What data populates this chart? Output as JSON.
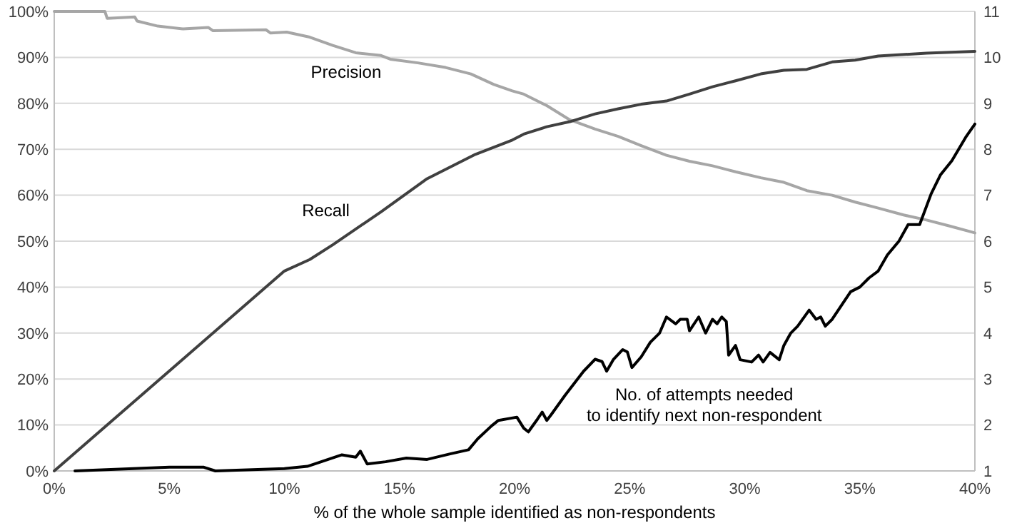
{
  "chart_data": {
    "type": "line",
    "xlabel": "% of the whole sample identified as non-respondents",
    "xlim": [
      0,
      40
    ],
    "xticks": [
      {
        "value": 0,
        "label": "0%"
      },
      {
        "value": 5,
        "label": "5%"
      },
      {
        "value": 10,
        "label": "10%"
      },
      {
        "value": 15,
        "label": "15%"
      },
      {
        "value": 20,
        "label": "20%"
      },
      {
        "value": 25,
        "label": "25%"
      },
      {
        "value": 30,
        "label": "30%"
      },
      {
        "value": 35,
        "label": "35%"
      },
      {
        "value": 40,
        "label": "40%"
      }
    ],
    "ylim": [
      0,
      100
    ],
    "yticks": [
      {
        "value": 0,
        "label": "0%"
      },
      {
        "value": 10,
        "label": "10%"
      },
      {
        "value": 20,
        "label": "20%"
      },
      {
        "value": 30,
        "label": "30%"
      },
      {
        "value": 40,
        "label": "40%"
      },
      {
        "value": 50,
        "label": "50%"
      },
      {
        "value": 60,
        "label": "60%"
      },
      {
        "value": 70,
        "label": "70%"
      },
      {
        "value": 80,
        "label": "80%"
      },
      {
        "value": 90,
        "label": "90%"
      },
      {
        "value": 100,
        "label": "100%"
      }
    ],
    "y2lim": [
      1,
      11
    ],
    "y2ticks": [
      1,
      2,
      3,
      4,
      5,
      6,
      7,
      8,
      9,
      10,
      11
    ],
    "grid": "y",
    "marker": "none",
    "line_style": "solid",
    "series": [
      {
        "name": "Precision",
        "color": "#a6a6a6",
        "x": [
          0,
          2.2,
          2.3,
          3.5,
          3.6,
          4.5,
          5.6,
          6.7,
          6.9,
          9.2,
          9.4,
          10.1,
          11.1,
          12.1,
          13.1,
          14.2,
          14.6,
          15.8,
          17,
          18.1,
          19.1,
          19.9,
          20.4,
          21.4,
          22.4,
          23.5,
          24.5,
          25.5,
          26.6,
          27.6,
          28.6,
          29.6,
          30.7,
          31.7,
          32.7,
          33.8,
          34.8,
          35.8,
          36.9,
          37.9,
          38.9,
          40
        ],
        "values": [
          100,
          100,
          98.5,
          98.8,
          97.9,
          96.8,
          96.2,
          96.5,
          95.8,
          96,
          95.3,
          95.5,
          94.4,
          92.6,
          91,
          90.4,
          89.6,
          88.8,
          87.8,
          86.4,
          84.1,
          82.7,
          82,
          79.5,
          76.4,
          74.4,
          72.8,
          70.8,
          68.7,
          67.4,
          66.4,
          65.1,
          63.8,
          62.8,
          61,
          60,
          58.5,
          57.2,
          55.7,
          54.6,
          53.3,
          51.8
        ]
      },
      {
        "name": "Recall",
        "color": "#404040",
        "x": [
          0,
          10,
          11.1,
          12.1,
          14.2,
          16.2,
          18.3,
          19.9,
          20.4,
          21.4,
          22.4,
          23.5,
          24.5,
          25.5,
          26.6,
          27.6,
          28.6,
          29.6,
          30.7,
          31.7,
          32.7,
          33.8,
          34.8,
          35.8,
          37.9,
          40
        ],
        "values": [
          0,
          43.5,
          46,
          49.2,
          56.4,
          63.6,
          68.9,
          72,
          73.3,
          74.9,
          76,
          77.7,
          78.8,
          79.8,
          80.5,
          82,
          83.6,
          84.9,
          86.4,
          87.2,
          87.4,
          89,
          89.4,
          90.3,
          90.9,
          91.3
        ]
      },
      {
        "name": "No. of attempts needed\nto identify next non-respondent",
        "color": "#000000",
        "axis": "y2",
        "x": [
          0.9,
          5,
          6.5,
          7,
          10,
          11,
          11.9,
          12.5,
          13.1,
          13.3,
          13.6,
          14.4,
          15.3,
          16.2,
          17.2,
          18,
          18.4,
          19,
          19.3,
          20.1,
          20.4,
          20.6,
          21,
          21.2,
          21.4,
          21.6,
          22.2,
          22.6,
          23,
          23.5,
          23.8,
          24,
          24.3,
          24.7,
          24.9,
          25.1,
          25.5,
          25.9,
          26.3,
          26.6,
          27,
          27.2,
          27.5,
          27.6,
          28,
          28.3,
          28.6,
          28.8,
          29,
          29.2,
          29.3,
          29.6,
          29.8,
          30.3,
          30.6,
          30.8,
          31.1,
          31.5,
          31.7,
          32,
          32.3,
          32.8,
          33.1,
          33.3,
          33.5,
          33.8,
          34.2,
          34.6,
          35,
          35.4,
          35.8,
          36.2,
          36.7,
          37.1,
          37.6,
          38.1,
          38.5,
          39,
          39.6,
          40
        ],
        "values": [
          1,
          1.08,
          1.08,
          1,
          1.05,
          1.1,
          1.25,
          1.35,
          1.3,
          1.43,
          1.15,
          1.2,
          1.28,
          1.25,
          1.37,
          1.46,
          1.7,
          1.98,
          2.1,
          2.17,
          1.93,
          1.85,
          2.13,
          2.28,
          2.1,
          2.23,
          2.65,
          2.91,
          3.17,
          3.43,
          3.38,
          3.17,
          3.43,
          3.64,
          3.59,
          3.25,
          3.48,
          3.8,
          4,
          4.35,
          4.2,
          4.3,
          4.3,
          4.05,
          4.35,
          4,
          4.3,
          4.2,
          4.35,
          4.25,
          3.52,
          3.73,
          3.42,
          3.37,
          3.52,
          3.37,
          3.58,
          3.42,
          3.73,
          4,
          4.15,
          4.5,
          4.3,
          4.35,
          4.15,
          4.3,
          4.6,
          4.9,
          5,
          5.2,
          5.35,
          5.7,
          6,
          6.36,
          6.36,
          7.03,
          7.44,
          7.75,
          8.26,
          8.55
        ]
      }
    ]
  }
}
